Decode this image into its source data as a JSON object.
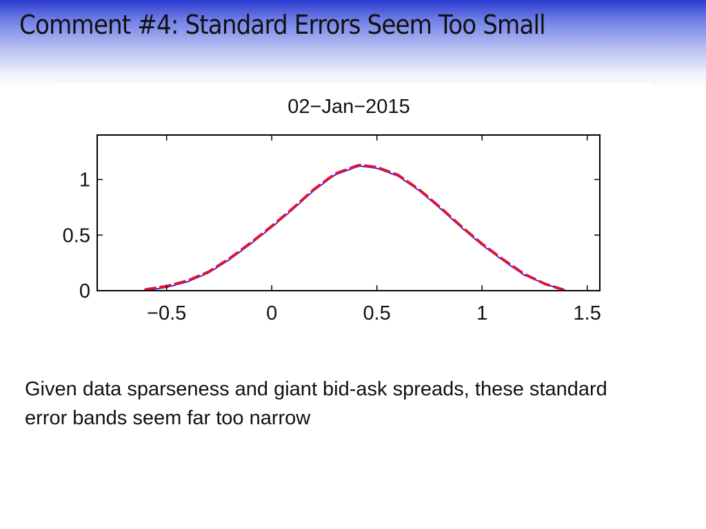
{
  "slide": {
    "title": "Comment #4: Standard Errors Seem Too Small",
    "caption": "Given data sparseness and giant bid-ask spreads, these standard error bands seem far too narrow"
  },
  "colors": {
    "title_band_top": "#2a3bd0",
    "fit_line": "#0000ff",
    "band_line": "#dc143c",
    "axes": "#000000"
  },
  "chart_data": {
    "type": "line",
    "title": "02−Jan−2015",
    "xlabel": "",
    "ylabel": "",
    "xlim": [
      -0.83,
      1.56
    ],
    "ylim": [
      0,
      1.4
    ],
    "xticks": [
      -0.5,
      0,
      0.5,
      1,
      1.5
    ],
    "xtick_labels": [
      "−0.5",
      "0",
      "0.5",
      "1",
      "1.5"
    ],
    "yticks": [
      0,
      0.5,
      1
    ],
    "ytick_labels": [
      "0",
      "0.5",
      "1"
    ],
    "grid": false,
    "legend": "none",
    "series": [
      {
        "style": "solid",
        "color": "#0000ff",
        "x": [
          -0.6,
          -0.5,
          -0.4,
          -0.3,
          -0.2,
          -0.1,
          0.0,
          0.1,
          0.2,
          0.3,
          0.4,
          0.42,
          0.5,
          0.6,
          0.7,
          0.8,
          0.9,
          1.0,
          1.1,
          1.2,
          1.3,
          1.4
        ],
        "y": [
          0.0,
          0.03,
          0.08,
          0.16,
          0.28,
          0.42,
          0.57,
          0.73,
          0.9,
          1.04,
          1.11,
          1.12,
          1.1,
          1.03,
          0.9,
          0.74,
          0.57,
          0.41,
          0.27,
          0.14,
          0.06,
          0.0
        ]
      },
      {
        "style": "dashed",
        "color": "#dc143c",
        "x": [
          -0.6,
          -0.5,
          -0.4,
          -0.3,
          -0.2,
          -0.1,
          0.0,
          0.1,
          0.2,
          0.3,
          0.4,
          0.42,
          0.5,
          0.6,
          0.7,
          0.8,
          0.9,
          1.0,
          1.1,
          1.2,
          1.3,
          1.4
        ],
        "y": [
          0.01,
          0.04,
          0.09,
          0.17,
          0.29,
          0.43,
          0.58,
          0.74,
          0.91,
          1.05,
          1.12,
          1.13,
          1.11,
          1.04,
          0.91,
          0.75,
          0.58,
          0.42,
          0.28,
          0.15,
          0.06,
          0.0
        ]
      }
    ]
  }
}
